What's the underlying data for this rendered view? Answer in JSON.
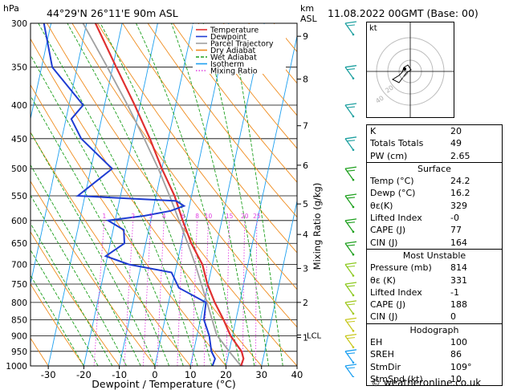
{
  "header": {
    "hpa_label": "hPa",
    "location": "44°29'N  26°11'E  90m  ASL",
    "km_label": "km",
    "asl_label": "ASL",
    "datetime": "11.08.2022  00GMT  (Base: 00)"
  },
  "chart_data": {
    "type": "skew-t log-p",
    "xlabel": "Dewpoint / Temperature (°C)",
    "ylabel_right": "Mixing Ratio (g/kg)",
    "xlim": [
      -35,
      40
    ],
    "ylim_hpa": [
      1000,
      300
    ],
    "x_ticks": [
      "-30",
      "-20",
      "-10",
      "0",
      "10",
      "20",
      "30",
      "40"
    ],
    "pressure_ticks": [
      "300",
      "350",
      "400",
      "450",
      "500",
      "550",
      "600",
      "650",
      "700",
      "750",
      "800",
      "850",
      "900",
      "950",
      "1000"
    ],
    "km_ticks": [
      {
        "label": "9",
        "p": 314
      },
      {
        "label": "8",
        "p": 365
      },
      {
        "label": "7",
        "p": 430
      },
      {
        "label": "6",
        "p": 494
      },
      {
        "label": "5",
        "p": 566
      },
      {
        "label": "4",
        "p": 630
      },
      {
        "label": "3",
        "p": 710
      },
      {
        "label": "2",
        "p": 800
      },
      {
        "label": "1",
        "p": 905
      },
      {
        "label": "LCL",
        "p": 897
      }
    ],
    "mixing_ratio_labels": [
      "1",
      "2",
      "3",
      "4",
      "6",
      "8",
      "10",
      "15",
      "20",
      "25"
    ],
    "legend": [
      "Temperature",
      "Dewpoint",
      "Parcel Trajectory",
      "Dry Adiabat",
      "Wet Adiabat",
      "Isotherm",
      "Mixing Ratio"
    ],
    "temperature": [
      {
        "p": 1000,
        "t": 24.2
      },
      {
        "p": 975,
        "t": 24.5
      },
      {
        "p": 950,
        "t": 23.5
      },
      {
        "p": 925,
        "t": 21.5
      },
      {
        "p": 900,
        "t": 19.5
      },
      {
        "p": 850,
        "t": 16.5
      },
      {
        "p": 800,
        "t": 13.0
      },
      {
        "p": 750,
        "t": 9.8
      },
      {
        "p": 700,
        "t": 7.2
      },
      {
        "p": 650,
        "t": 2.8
      },
      {
        "p": 600,
        "t": -1.0
      },
      {
        "p": 550,
        "t": -4.8
      },
      {
        "p": 500,
        "t": -10.0
      },
      {
        "p": 450,
        "t": -15.2
      },
      {
        "p": 400,
        "t": -21.5
      },
      {
        "p": 350,
        "t": -29.0
      },
      {
        "p": 300,
        "t": -37.5
      }
    ],
    "dewpoint": [
      {
        "p": 1000,
        "t": 16.2
      },
      {
        "p": 975,
        "t": 16.5
      },
      {
        "p": 950,
        "t": 15.0
      },
      {
        "p": 900,
        "t": 13.5
      },
      {
        "p": 850,
        "t": 11.0
      },
      {
        "p": 800,
        "t": 10.5
      },
      {
        "p": 760,
        "t": 2.0
      },
      {
        "p": 720,
        "t": -1.0
      },
      {
        "p": 700,
        "t": -13.5
      },
      {
        "p": 680,
        "t": -20.5
      },
      {
        "p": 650,
        "t": -16.0
      },
      {
        "p": 620,
        "t": -17.0
      },
      {
        "p": 600,
        "t": -22.0
      },
      {
        "p": 590,
        "t": -12.0
      },
      {
        "p": 580,
        "t": -5.0
      },
      {
        "p": 570,
        "t": -1.5
      },
      {
        "p": 560,
        "t": -4.0
      },
      {
        "p": 550,
        "t": -32.0
      },
      {
        "p": 500,
        "t": -24.0
      },
      {
        "p": 450,
        "t": -34.5
      },
      {
        "p": 420,
        "t": -38.5
      },
      {
        "p": 400,
        "t": -36.0
      },
      {
        "p": 350,
        "t": -47.0
      },
      {
        "p": 300,
        "t": -52.0
      }
    ],
    "parcel": [
      {
        "p": 1000,
        "t": 24.2
      },
      {
        "p": 950,
        "t": 20.0
      },
      {
        "p": 897,
        "t": 15.5
      },
      {
        "p": 850,
        "t": 13.3
      },
      {
        "p": 800,
        "t": 10.8
      },
      {
        "p": 750,
        "t": 8.1
      },
      {
        "p": 700,
        "t": 5.2
      },
      {
        "p": 650,
        "t": 1.8
      },
      {
        "p": 600,
        "t": -2.0
      },
      {
        "p": 550,
        "t": -6.2
      },
      {
        "p": 500,
        "t": -11.0
      },
      {
        "p": 450,
        "t": -16.8
      },
      {
        "p": 400,
        "t": -23.5
      },
      {
        "p": 350,
        "t": -31.5
      },
      {
        "p": 300,
        "t": -41.0
      }
    ]
  },
  "indices": {
    "k_label": "K",
    "k": "20",
    "tt_label": "Totals Totals",
    "tt": "49",
    "pw_label": "PW (cm)",
    "pw": "2.65"
  },
  "surface": {
    "title": "Surface",
    "temp_label": "Temp (°C)",
    "temp": "24.2",
    "dewp_label": "Dewp (°C)",
    "dewp": "16.2",
    "theta_label": "θε(K)",
    "theta": "329",
    "li_label": "Lifted Index",
    "li": "-0",
    "cape_label": "CAPE (J)",
    "cape": "77",
    "cin_label": "CIN (J)",
    "cin": "164"
  },
  "most_unstable": {
    "title": "Most Unstable",
    "pres_label": "Pressure (mb)",
    "pres": "814",
    "theta_label": "θε (K)",
    "theta": "331",
    "li_label": "Lifted Index",
    "li": "-1",
    "cape_label": "CAPE (J)",
    "cape": "188",
    "cin_label": "CIN (J)",
    "cin": "0"
  },
  "hodograph": {
    "title": "Hodograph",
    "kt_label": "kt",
    "ring_labels": [
      "20",
      "40"
    ],
    "eh_label": "EH",
    "eh": "100",
    "sreh_label": "SREH",
    "sreh": "86",
    "stmdir_label": "StmDir",
    "stmdir": "109°",
    "stmspd_label": "StmSpd (kt)",
    "stmspd": "10"
  },
  "footer": {
    "copyright": "© weatheronline.co.uk"
  },
  "colors": {
    "temperature": "#e03030",
    "dewpoint": "#1e3cd2",
    "parcel": "#a0a0a0",
    "dry_adiabat": "#f08c1e",
    "wet_adiabat": "#1ea01e",
    "isotherm": "#1ea0f0",
    "mixing_ratio": "#e040e0"
  }
}
